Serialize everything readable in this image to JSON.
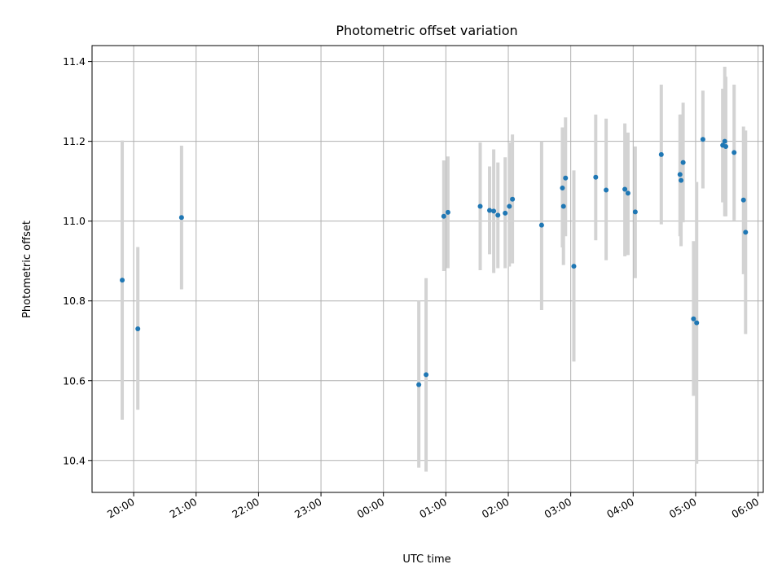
{
  "chart_data": {
    "type": "scatter",
    "title": "Photometric offset variation",
    "xlabel": "UTC time",
    "ylabel": "Photometric offset",
    "grid": true,
    "x_axis": "time",
    "x_range": [
      "19:20",
      "30:05"
    ],
    "ylim": [
      10.32,
      11.44
    ],
    "x_ticks": [
      "20:00",
      "21:00",
      "22:00",
      "23:00",
      "00:00",
      "01:00",
      "02:00",
      "03:00",
      "04:00",
      "05:00",
      "06:00"
    ],
    "y_ticks": [
      "10.4",
      "10.6",
      "10.8",
      "11.0",
      "11.2",
      "11.4"
    ],
    "y_tick_values": [
      10.4,
      10.6,
      10.8,
      11.0,
      11.2,
      11.4
    ],
    "marker_color": "#1f77b4",
    "errorbar_color": "#d3d3d3",
    "points": [
      {
        "time": "19:49",
        "y": 10.852,
        "ylo": 10.502,
        "yhi": 11.202
      },
      {
        "time": "20:04",
        "y": 10.73,
        "ylo": 10.527,
        "yhi": 10.935
      },
      {
        "time": "20:46",
        "y": 11.009,
        "ylo": 10.829,
        "yhi": 11.189
      },
      {
        "time": "00:34",
        "y": 10.59,
        "ylo": 10.382,
        "yhi": 10.8
      },
      {
        "time": "00:41",
        "y": 10.615,
        "ylo": 10.372,
        "yhi": 10.857
      },
      {
        "time": "00:58",
        "y": 11.012,
        "ylo": 10.875,
        "yhi": 11.152
      },
      {
        "time": "01:02",
        "y": 11.022,
        "ylo": 10.882,
        "yhi": 11.162
      },
      {
        "time": "01:33",
        "y": 11.037,
        "ylo": 10.877,
        "yhi": 11.197
      },
      {
        "time": "01:42",
        "y": 11.027,
        "ylo": 10.917,
        "yhi": 11.137
      },
      {
        "time": "01:46",
        "y": 11.025,
        "ylo": 10.87,
        "yhi": 11.18
      },
      {
        "time": "01:50",
        "y": 11.015,
        "ylo": 10.882,
        "yhi": 11.147
      },
      {
        "time": "01:57",
        "y": 11.02,
        "ylo": 10.882,
        "yhi": 11.16
      },
      {
        "time": "02:01",
        "y": 11.037,
        "ylo": 10.886,
        "yhi": 11.197
      },
      {
        "time": "02:04",
        "y": 11.055,
        "ylo": 10.894,
        "yhi": 11.217
      },
      {
        "time": "02:32",
        "y": 10.99,
        "ylo": 10.777,
        "yhi": 11.2
      },
      {
        "time": "02:52",
        "y": 11.083,
        "ylo": 10.934,
        "yhi": 11.235
      },
      {
        "time": "02:53",
        "y": 11.037,
        "ylo": 10.89,
        "yhi": 11.187
      },
      {
        "time": "02:55",
        "y": 11.108,
        "ylo": 10.962,
        "yhi": 11.26
      },
      {
        "time": "03:03",
        "y": 10.887,
        "ylo": 10.648,
        "yhi": 11.127
      },
      {
        "time": "03:24",
        "y": 11.11,
        "ylo": 10.952,
        "yhi": 11.267
      },
      {
        "time": "03:34",
        "y": 11.078,
        "ylo": 10.902,
        "yhi": 11.257
      },
      {
        "time": "03:52",
        "y": 11.08,
        "ylo": 10.912,
        "yhi": 11.245
      },
      {
        "time": "03:55",
        "y": 11.07,
        "ylo": 10.915,
        "yhi": 11.222
      },
      {
        "time": "04:02",
        "y": 11.023,
        "ylo": 10.857,
        "yhi": 11.187
      },
      {
        "time": "04:27",
        "y": 11.167,
        "ylo": 10.992,
        "yhi": 11.342
      },
      {
        "time": "04:45",
        "y": 11.117,
        "ylo": 10.962,
        "yhi": 11.267
      },
      {
        "time": "04:46",
        "y": 11.102,
        "ylo": 10.937,
        "yhi": 11.267
      },
      {
        "time": "04:48",
        "y": 11.147,
        "ylo": 10.997,
        "yhi": 11.297
      },
      {
        "time": "04:58",
        "y": 10.755,
        "ylo": 10.562,
        "yhi": 10.95
      },
      {
        "time": "05:01",
        "y": 10.745,
        "ylo": 10.392,
        "yhi": 11.098
      },
      {
        "time": "05:07",
        "y": 11.205,
        "ylo": 11.082,
        "yhi": 11.327
      },
      {
        "time": "05:26",
        "y": 11.19,
        "ylo": 11.047,
        "yhi": 11.332
      },
      {
        "time": "05:28",
        "y": 11.2,
        "ylo": 11.012,
        "yhi": 11.387
      },
      {
        "time": "05:29",
        "y": 11.187,
        "ylo": 11.012,
        "yhi": 11.362
      },
      {
        "time": "05:37",
        "y": 11.172,
        "ylo": 11.002,
        "yhi": 11.342
      },
      {
        "time": "05:46",
        "y": 11.053,
        "ylo": 10.867,
        "yhi": 11.237
      },
      {
        "time": "05:48",
        "y": 10.972,
        "ylo": 10.717,
        "yhi": 11.227
      }
    ]
  }
}
